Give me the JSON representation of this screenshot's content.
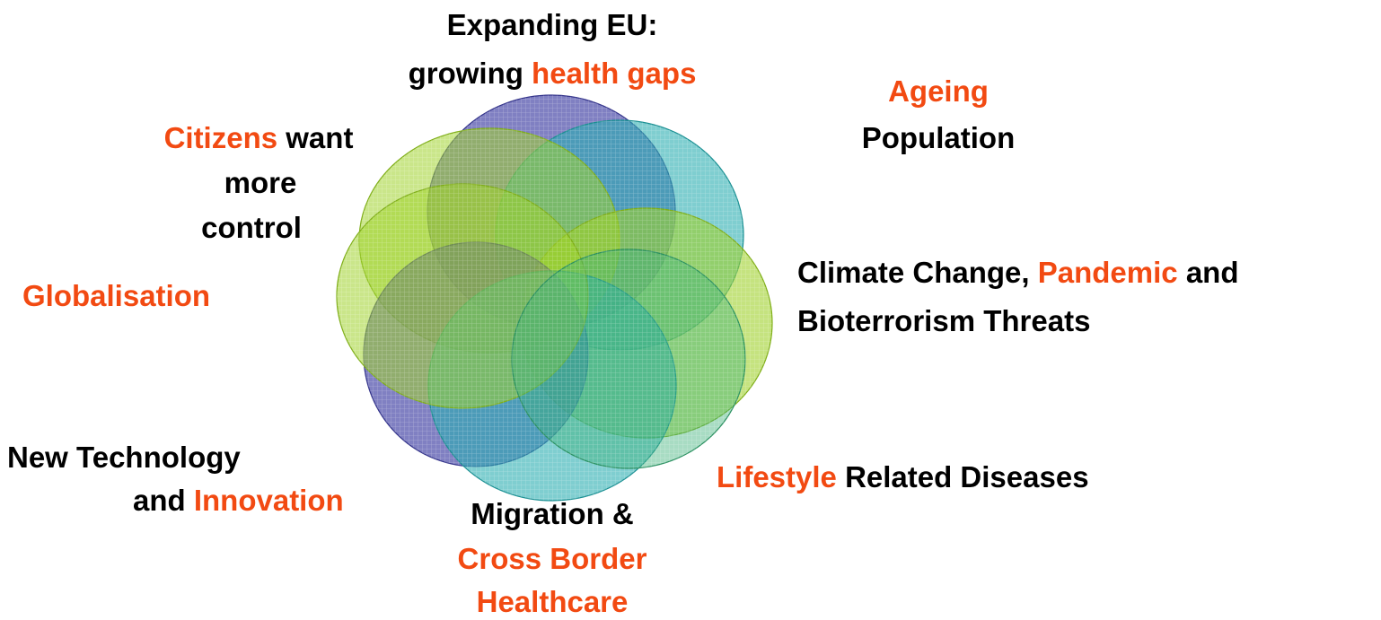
{
  "labels": [
    {
      "lines": [
        [
          {
            "text": "Expanding EU:"
          }
        ],
        [
          {
            "text": "growing"
          },
          {
            "text": "health gaps",
            "highlight": true
          }
        ]
      ]
    },
    {
      "lines": [
        [
          {
            "text": "Ageing",
            "highlight": true
          }
        ],
        [
          {
            "text": "Population"
          }
        ]
      ]
    },
    {
      "lines": [
        [
          {
            "text": "Citizens",
            "highlight": true
          },
          {
            "text": "want"
          }
        ],
        [
          {
            "text": "more"
          }
        ],
        [
          {
            "text": "control"
          }
        ]
      ]
    },
    {
      "lines": [
        [
          {
            "text": "Globalisation",
            "highlight": true
          }
        ]
      ]
    },
    {
      "lines": [
        [
          {
            "text": "Climate Change,"
          },
          {
            "text": "Pandemic",
            "highlight": true
          },
          {
            "text": "and"
          }
        ],
        [
          {
            "text": "Bioterrorism Threats"
          }
        ]
      ]
    },
    {
      "lines": [
        [
          {
            "text": "New Technology"
          }
        ],
        [
          {
            "text": "and"
          },
          {
            "text": "Innovation",
            "highlight": true
          }
        ]
      ]
    },
    {
      "lines": [
        [
          {
            "text": "Lifestyle",
            "highlight": true
          },
          {
            "text": "Related Diseases"
          }
        ]
      ]
    },
    {
      "lines": [
        [
          {
            "text": "Migration &"
          }
        ],
        [
          {
            "text": "Cross Border",
            "highlight": true
          }
        ],
        [
          {
            "text": "Healthcare",
            "highlight": true
          }
        ]
      ]
    }
  ]
}
